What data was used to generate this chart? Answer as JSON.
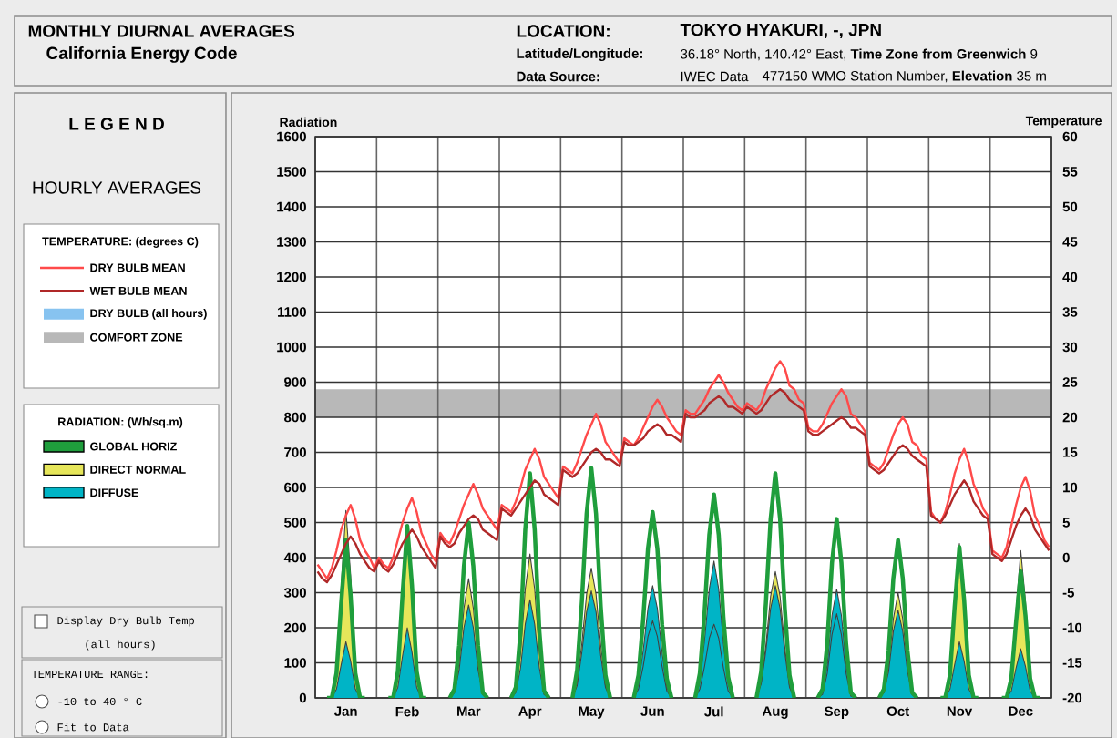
{
  "chart_data": {
    "type": "area",
    "title": "MONTHLY DIURNAL AVERAGES",
    "subtitle": "California Energy Code",
    "ylabel": "Radiation",
    "y2label": "Temperature",
    "annotations": [
      "LOCATION:",
      "TOKYO HYAKURI, -, JPN",
      "Latitude/Longitude:",
      "36.18° North, 140.42° East, **Time Zone from Greenwich** 9",
      "Data Source:",
      "IWEC Data",
      "477150 WMO Station Number, **Elevation** 35 m",
      "L E G E N D",
      "HOURLY AVERAGES",
      "TEMPERATURE: (degrees C)",
      "RADIATION: (Wh/sq.m)",
      "Display Dry Bulb Temp",
      "(all hours)",
      "TEMPERATURE RANGE:",
      "-10 to 40 ° C",
      "Fit to Data",
      "DRY BULB (all hours)"
    ],
    "categories": [
      null,
      null,
      null,
      null,
      null,
      null,
      "Jan",
      null,
      null,
      null,
      null,
      null,
      null,
      null,
      null,
      null,
      null,
      null,
      null,
      "Feb",
      null,
      null,
      null,
      null,
      null,
      null,
      null,
      null,
      null,
      null,
      null,
      null,
      "Mar",
      null,
      null,
      null,
      null,
      null,
      null,
      null,
      null,
      null,
      null,
      null,
      null,
      "Apr",
      null,
      null,
      null,
      null,
      null,
      null,
      null,
      null,
      null,
      null,
      null,
      null,
      "May",
      null,
      null,
      null,
      null,
      null,
      null,
      null,
      null,
      null,
      null,
      null,
      null,
      "Jun",
      null,
      null,
      null,
      null,
      null,
      null,
      null,
      null,
      null,
      null,
      null,
      null,
      "Jul",
      null,
      null,
      null,
      null,
      null,
      null,
      null,
      null,
      null,
      null,
      null,
      null,
      "Aug",
      null,
      null,
      null,
      null,
      null,
      null,
      null,
      null,
      null,
      null,
      null,
      null,
      "Sep",
      null,
      null,
      null,
      null,
      null,
      null,
      null,
      null,
      null,
      null,
      null,
      null,
      "Oct",
      null,
      null,
      null,
      null,
      null,
      null,
      null,
      null,
      null,
      null,
      null,
      null,
      "Nov",
      null,
      null,
      null,
      null,
      null,
      null,
      null,
      null,
      null,
      null,
      null,
      null,
      "Dec",
      null,
      null,
      null,
      null,
      null,
      null
    ],
    "ylim": [
      0,
      1600
    ],
    "yticks": [
      0,
      100,
      200,
      300,
      400,
      500,
      600,
      700,
      800,
      900,
      1000,
      1100,
      1200,
      1300,
      1400,
      1500,
      1600
    ],
    "y2lim": [
      -20,
      60
    ],
    "y2ticks": [
      -20,
      -15,
      -10,
      -5,
      0,
      5,
      10,
      15,
      20,
      25,
      30,
      35,
      40,
      45,
      50,
      55,
      60
    ],
    "grid": true,
    "legend": "left",
    "bands": [
      {
        "axis": "y2",
        "from": 20,
        "to": 24,
        "label": "COMFORT ZONE",
        "color": "#b8b8b8"
      }
    ],
    "series": [
      {
        "name": "DRY BULB MEAN",
        "type": "line",
        "axis": "y2",
        "color": "#ff4a4a",
        "values": [
          -1,
          -2,
          -3,
          -1.5,
          1,
          4,
          6,
          7.5,
          5.5,
          2.5,
          1,
          0,
          -1.5,
          0,
          -1,
          -1.5,
          0,
          2.5,
          5,
          7,
          8.5,
          6.5,
          3.5,
          2,
          0.5,
          -0.5,
          3.5,
          2.5,
          2,
          3.5,
          5.5,
          7.5,
          9,
          10.5,
          9,
          7,
          6,
          5,
          4,
          7.5,
          7,
          6.5,
          8,
          10,
          12.5,
          14,
          15.5,
          14,
          11.5,
          10.5,
          9.5,
          8.5,
          13,
          12.5,
          12,
          13.5,
          15.5,
          17.5,
          19,
          20.5,
          19,
          16.5,
          15.5,
          14.5,
          13.5,
          17,
          16.5,
          16,
          17,
          18.5,
          20,
          21.5,
          22.5,
          21.5,
          20,
          19,
          18,
          17.5,
          21,
          20.5,
          20.5,
          21.5,
          22.5,
          24,
          25,
          26,
          25,
          23.5,
          22.5,
          21.5,
          21,
          22,
          21.5,
          21,
          22,
          24,
          25.5,
          27,
          28,
          27,
          24.5,
          24,
          22.5,
          22,
          18.5,
          18,
          18,
          19,
          20.5,
          22,
          23,
          24,
          23,
          20.5,
          20,
          19,
          18,
          13.5,
          13,
          12.5,
          13.5,
          15.5,
          17.5,
          19,
          20,
          19,
          16.5,
          16,
          14.5,
          14,
          6.5,
          5.5,
          5,
          6.5,
          9,
          12,
          14,
          15.5,
          13.5,
          10.5,
          9,
          7,
          6,
          1,
          0.5,
          0,
          1.5,
          4.5,
          7.5,
          10,
          11.5,
          9.5,
          6,
          4.5,
          2.5,
          1.5
        ]
      },
      {
        "name": "WET BULB MEAN",
        "type": "line",
        "axis": "y2",
        "color": "#b02828",
        "values": [
          -2,
          -3,
          -3.5,
          -2.5,
          -1,
          0.5,
          2,
          3,
          2,
          0.5,
          -0.5,
          -1.5,
          -2,
          -0.5,
          -1.5,
          -2,
          -1,
          0.5,
          2,
          3,
          4,
          3,
          1.5,
          0.5,
          -0.5,
          -1.5,
          3,
          2,
          1.5,
          2,
          3.5,
          4.5,
          5.5,
          6,
          5.5,
          4,
          3.5,
          3,
          2.5,
          7,
          6.5,
          6,
          7,
          8,
          9,
          10,
          11,
          10.5,
          9,
          8.5,
          8,
          7.5,
          12.5,
          12,
          11.5,
          12,
          13,
          14,
          15,
          15.5,
          15,
          14,
          14,
          13.5,
          13,
          16.5,
          16,
          16,
          16.5,
          17,
          18,
          18.5,
          19,
          18.5,
          17.5,
          17.5,
          17,
          16.5,
          20.5,
          20,
          20,
          20.5,
          21,
          22,
          22.5,
          23,
          22.5,
          21.5,
          21.5,
          21,
          20.5,
          21.5,
          21,
          20.5,
          21,
          22,
          23,
          23.5,
          24,
          23.5,
          22.5,
          22,
          21.5,
          21,
          18,
          17.5,
          17.5,
          18,
          18.5,
          19,
          19.5,
          20,
          19.5,
          18.5,
          18.5,
          18,
          17.5,
          13,
          12.5,
          12,
          12.5,
          13.5,
          14.5,
          15.5,
          16,
          15.5,
          14.5,
          14,
          13.5,
          13,
          6,
          5.5,
          5,
          6,
          7.5,
          9,
          10,
          11,
          10,
          8,
          7,
          6,
          5.5,
          0.5,
          0,
          -0.5,
          0.5,
          2.5,
          4.5,
          6,
          7,
          6,
          4,
          3,
          2,
          1
        ]
      },
      {
        "name": "GLOBAL HORIZ",
        "type": "line",
        "color": "#1f9e3c",
        "values": [
          null,
          null,
          0,
          0,
          70,
          270,
          450,
          290,
          70,
          0,
          0,
          null,
          null,
          null,
          null,
          0,
          0,
          75,
          295,
          490,
          320,
          75,
          0,
          0,
          null,
          null,
          null,
          null,
          0,
          25,
          150,
          375,
          500,
          375,
          150,
          15,
          0,
          null,
          null,
          null,
          null,
          0,
          30,
          190,
          480,
          640,
          480,
          190,
          20,
          0,
          null,
          null,
          null,
          null,
          0,
          80,
          275,
          525,
          655,
          525,
          260,
          65,
          0,
          null,
          null,
          null,
          null,
          0,
          65,
          225,
          425,
          530,
          425,
          210,
          55,
          0,
          null,
          null,
          null,
          null,
          0,
          70,
          245,
          465,
          580,
          465,
          230,
          60,
          0,
          null,
          null,
          null,
          null,
          0,
          75,
          270,
          510,
          640,
          510,
          255,
          65,
          0,
          null,
          null,
          null,
          null,
          0,
          25,
          155,
          385,
          510,
          385,
          155,
          15,
          0,
          null,
          null,
          null,
          null,
          0,
          25,
          135,
          340,
          450,
          340,
          135,
          15,
          0,
          null,
          null,
          null,
          null,
          0,
          0,
          65,
          260,
          430,
          280,
          65,
          0,
          0,
          null,
          null,
          null,
          null,
          0,
          0,
          55,
          215,
          360,
          235,
          55,
          0,
          0,
          null,
          null
        ]
      },
      {
        "name": "DIRECT NORMAL",
        "color": "#e6e65a",
        "values": [
          0,
          0,
          0,
          0,
          80,
          320,
          535,
          350,
          80,
          0,
          0,
          0,
          0,
          0,
          0,
          0,
          0,
          70,
          280,
          470,
          305,
          70,
          0,
          0,
          0,
          0,
          0,
          0,
          0,
          15,
          100,
          255,
          340,
          255,
          100,
          10,
          0,
          0,
          0,
          0,
          0,
          0,
          20,
          125,
          310,
          410,
          310,
          125,
          10,
          0,
          0,
          0,
          0,
          0,
          0,
          45,
          155,
          295,
          370,
          295,
          150,
          35,
          0,
          0,
          0,
          0,
          0,
          0,
          25,
          90,
          175,
          220,
          175,
          90,
          20,
          0,
          0,
          0,
          0,
          0,
          0,
          25,
          90,
          170,
          210,
          170,
          85,
          20,
          0,
          0,
          0,
          0,
          0,
          0,
          45,
          150,
          290,
          360,
          290,
          145,
          35,
          0,
          0,
          0,
          0,
          0,
          0,
          10,
          70,
          180,
          240,
          180,
          70,
          5,
          0,
          0,
          0,
          0,
          0,
          0,
          15,
          90,
          225,
          300,
          225,
          90,
          10,
          0,
          0,
          0,
          0,
          0,
          0,
          0,
          65,
          265,
          440,
          285,
          65,
          0,
          0,
          0,
          0,
          0,
          0,
          0,
          0,
          65,
          250,
          420,
          275,
          65,
          0,
          0,
          0,
          0
        ]
      },
      {
        "name": "DIFFUSE",
        "color": "#00b4c6",
        "values": [
          0,
          0,
          0,
          0,
          25,
          95,
          160,
          105,
          25,
          0,
          0,
          0,
          0,
          0,
          0,
          0,
          0,
          30,
          120,
          200,
          130,
          30,
          0,
          0,
          0,
          0,
          0,
          0,
          0,
          15,
          80,
          200,
          265,
          200,
          80,
          10,
          0,
          0,
          0,
          0,
          0,
          0,
          15,
          85,
          210,
          280,
          210,
          85,
          10,
          0,
          0,
          0,
          0,
          0,
          0,
          35,
          130,
          245,
          305,
          245,
          120,
          30,
          0,
          0,
          0,
          0,
          0,
          0,
          40,
          135,
          255,
          320,
          255,
          130,
          30,
          0,
          0,
          0,
          0,
          0,
          0,
          45,
          165,
          310,
          390,
          310,
          155,
          40,
          0,
          0,
          0,
          0,
          0,
          0,
          40,
          135,
          255,
          320,
          255,
          130,
          30,
          0,
          0,
          0,
          0,
          0,
          0,
          15,
          95,
          235,
          310,
          235,
          95,
          10,
          0,
          0,
          0,
          0,
          0,
          0,
          15,
          75,
          190,
          250,
          190,
          75,
          10,
          0,
          0,
          0,
          0,
          0,
          0,
          0,
          25,
          95,
          160,
          105,
          25,
          0,
          0,
          0,
          0,
          0,
          0,
          0,
          0,
          20,
          85,
          140,
          90,
          20,
          0,
          0,
          0,
          0
        ]
      }
    ]
  }
}
